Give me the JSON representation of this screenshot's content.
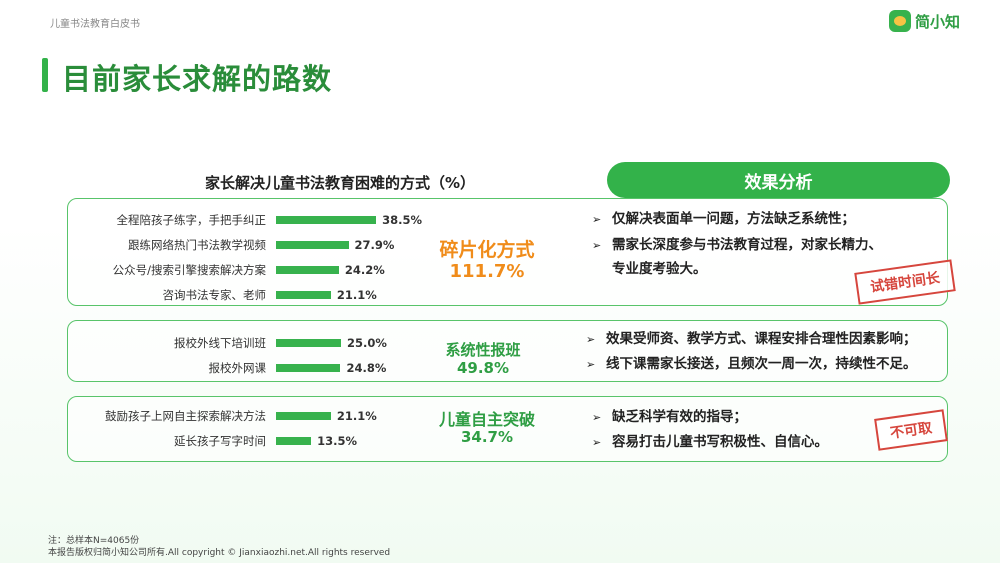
{
  "header": {
    "subtitle": "儿童书法教育白皮书",
    "logo_text": "简小知"
  },
  "page_title": "目前家长求解的路数",
  "chart_data": {
    "type": "bar",
    "title": "家长解决儿童书法教育困难的方式（%）",
    "value_unit": "%",
    "xlim": [
      0,
      100
    ],
    "groups": [
      {
        "name": "碎片化方式",
        "total": "111.7%",
        "categories": [
          "全程陪孩子练字，手把手纠正",
          "跟练网络热门书法教学视频",
          "公众号/搜索引擎搜索解决方案",
          "咨询书法专家、老师"
        ],
        "values": [
          38.5,
          27.9,
          24.2,
          21.1
        ]
      },
      {
        "name": "系统性报班",
        "total": "49.8%",
        "categories": [
          "报校外线下培训班",
          "报校外网课"
        ],
        "values": [
          25.0,
          24.8
        ]
      },
      {
        "name": "儿童自主突破",
        "total": "34.7%",
        "categories": [
          "鼓励孩子上网自主探索解决方法",
          "延长孩子写字时间"
        ],
        "values": [
          21.1,
          13.5
        ]
      }
    ]
  },
  "effect": {
    "header": "效果分析",
    "arrow_glyph": "➢",
    "groups": [
      {
        "points": [
          "仅解决表面单一问题，方法缺乏系统性；",
          "需家长深度参与书法教育过程，对家长精力、",
          "专业度考验大。"
        ],
        "stamp": "试错时间长"
      },
      {
        "points": [
          "效果受师资、教学方式、课程安排合理性因素影响；",
          "线下课需家长接送，且频次一周一次，持续性不足。"
        ]
      },
      {
        "points": [
          "缺乏科学有效的指导；",
          "容易打击儿童书写积极性、自信心。"
        ],
        "stamp": "不可取"
      }
    ]
  },
  "footer": {
    "note": "注：总样本N=4065份",
    "copyright": "本报告版权归简小知公司所有.All copyright © Jianxiaozhi.net.All rights reserved"
  },
  "colors": {
    "accent": "#33b24a",
    "orange": "#f08c1a",
    "green_text": "#2f9e44",
    "stamp": "#d6463d"
  }
}
